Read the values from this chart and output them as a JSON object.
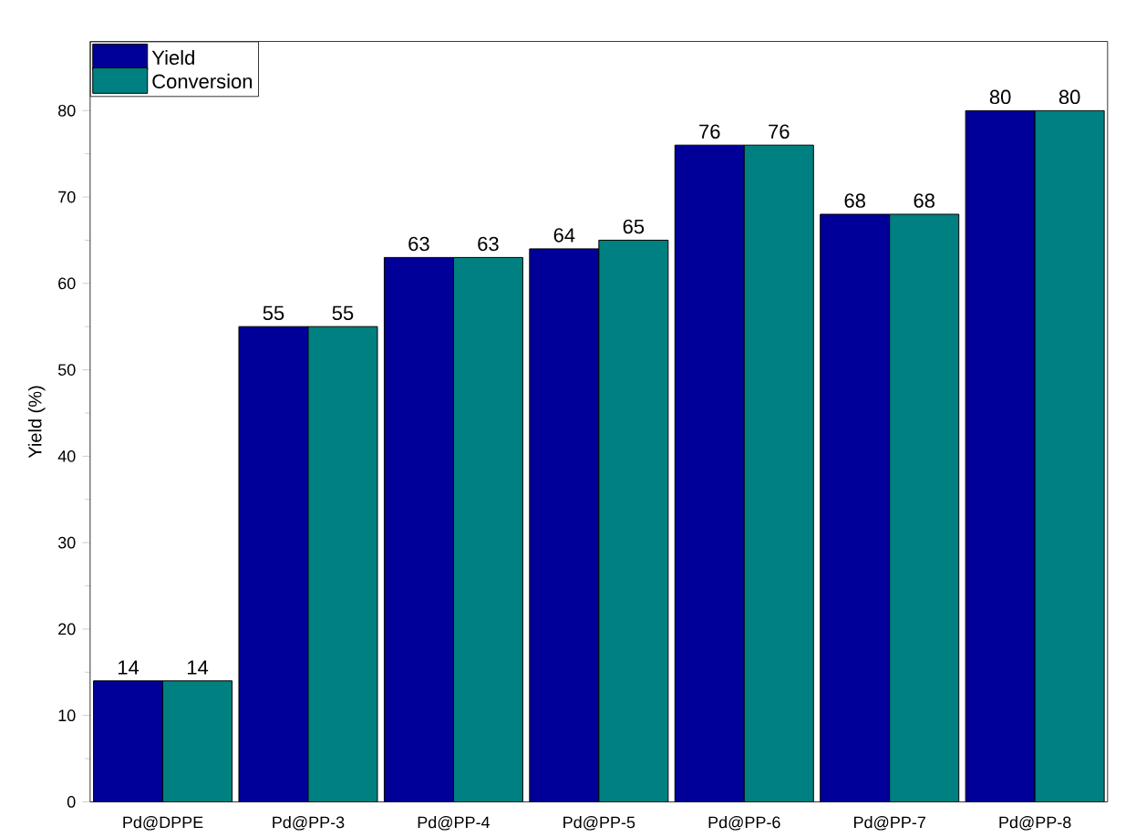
{
  "chart_data": {
    "type": "bar",
    "ylabel": "Yield (%)",
    "categories": [
      "Pd@DPPE",
      "Pd@PP-3",
      "Pd@PP-4",
      "Pd@PP-5",
      "Pd@PP-6",
      "Pd@PP-7",
      "Pd@PP-8"
    ],
    "series": [
      {
        "name": "Yield",
        "color": "#000099",
        "values": [
          14,
          55,
          63,
          64,
          76,
          68,
          80
        ]
      },
      {
        "name": "Conversion",
        "color": "#008080",
        "values": [
          14,
          55,
          63,
          65,
          76,
          68,
          80
        ]
      }
    ],
    "ylim": [
      0,
      88
    ],
    "yticks": [
      0,
      10,
      20,
      30,
      40,
      50,
      60,
      70,
      80
    ],
    "data_labels": true,
    "legend": "top left",
    "grid": false
  }
}
